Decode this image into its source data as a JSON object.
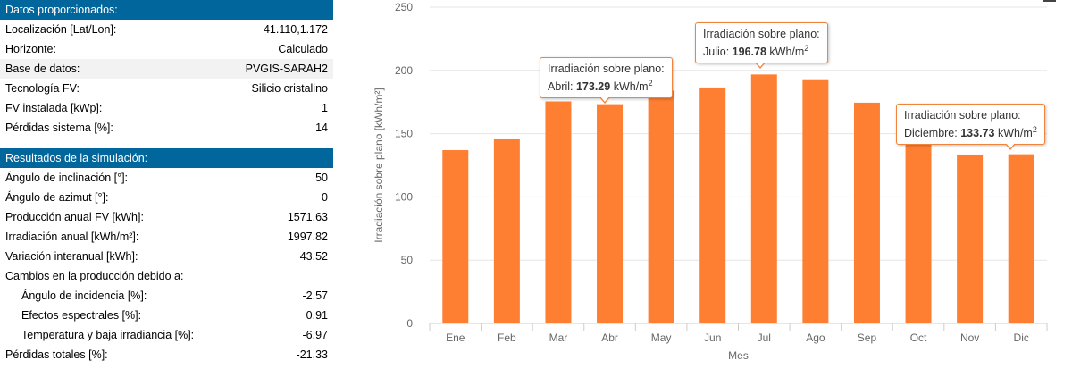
{
  "inputs": {
    "header": "Datos proporcionados:",
    "rows": [
      {
        "label": "Localización [Lat/Lon]:",
        "value": "41.110,1.172"
      },
      {
        "label": "Horizonte:",
        "value": "Calculado"
      },
      {
        "label": "Base de datos:",
        "value": "PVGIS-SARAH2"
      },
      {
        "label": "Tecnología FV:",
        "value": "Silicio cristalino"
      },
      {
        "label": "FV instalada [kWp]:",
        "value": "1"
      },
      {
        "label": "Pérdidas sistema [%]:",
        "value": "14"
      }
    ]
  },
  "results": {
    "header": "Resultados de la simulación:",
    "rows": [
      {
        "label": "Ángulo de inclinación [°]:",
        "value": "50"
      },
      {
        "label": "Ángulo de azimut [°]:",
        "value": "0"
      },
      {
        "label": "Producción anual FV [kWh]:",
        "value": "1571.63"
      },
      {
        "label": "Irradiación anual [kWh/m²]:",
        "value": "1997.82"
      },
      {
        "label": "Variación interanual [kWh]:",
        "value": "43.52"
      },
      {
        "label": "Cambios en la producción debido a:",
        "value": ""
      },
      {
        "label": "Ángulo de incidencia [%]:",
        "value": "-2.57"
      },
      {
        "label": "Efectos espectrales [%]:",
        "value": "0.91"
      },
      {
        "label": "Temperatura y baja irradiancia [%]:",
        "value": "-6.97"
      },
      {
        "label": "Pérdidas totales [%]:",
        "value": "-21.33"
      }
    ]
  },
  "chart_data": {
    "type": "bar",
    "categories": [
      "Ene",
      "Feb",
      "Mar",
      "Abr",
      "May",
      "Jun",
      "Jul",
      "Ago",
      "Sep",
      "Oct",
      "Nov",
      "Dic"
    ],
    "values": [
      137,
      145.5,
      175.5,
      173.29,
      184,
      186.5,
      196.78,
      193,
      174.5,
      148,
      133.5,
      133.73
    ],
    "xlabel": "Mes",
    "ylabel": "Irradiación sobre plano [kWh/m²]",
    "ylim": [
      0,
      250
    ],
    "yticks": [
      0,
      50,
      100,
      150,
      200,
      250
    ],
    "grid": true,
    "bar_color": "#ff7f32",
    "tooltips": [
      {
        "title": "Irradiación sobre plano:",
        "month": "Abril:",
        "value": "173.29",
        "unit": "kWh/m",
        "sup": "2"
      },
      {
        "title": "Irradiación sobre plano:",
        "month": "Julio:",
        "value": "196.78",
        "unit": "kWh/m",
        "sup": "2"
      },
      {
        "title": "Irradiación sobre plano:",
        "month": "Diciembre:",
        "value": "133.73",
        "unit": "kWh/m",
        "sup": "2"
      }
    ]
  }
}
